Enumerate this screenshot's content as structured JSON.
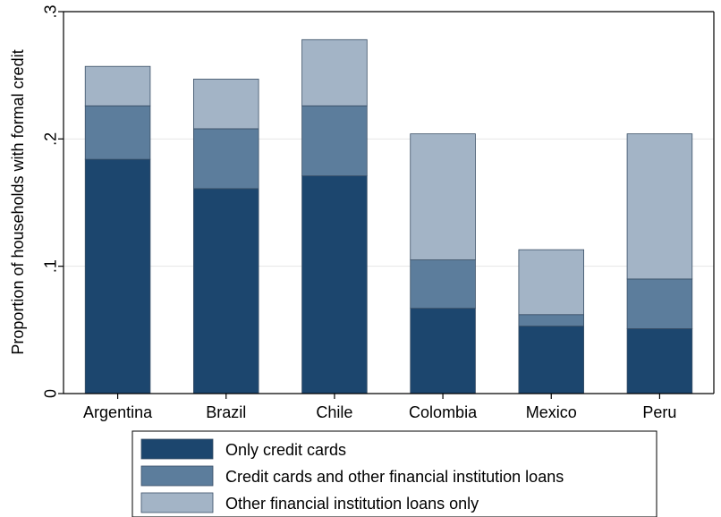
{
  "chart_data": {
    "type": "bar",
    "stacked": true,
    "categories": [
      "Argentina",
      "Brazil",
      "Chile",
      "Colombia",
      "Mexico",
      "Peru"
    ],
    "series": [
      {
        "name": "Only credit cards",
        "values": [
          0.184,
          0.161,
          0.171,
          0.067,
          0.053,
          0.051
        ],
        "color": "#1c466e"
      },
      {
        "name": "Credit cards and other financial institution loans",
        "values": [
          0.042,
          0.047,
          0.055,
          0.038,
          0.009,
          0.039
        ],
        "color": "#5c7d9c"
      },
      {
        "name": "Other financial institution loans only",
        "values": [
          0.031,
          0.039,
          0.052,
          0.099,
          0.051,
          0.114
        ],
        "color": "#a3b4c6"
      }
    ],
    "xlabel": "",
    "ylabel": "Proportion of households with formal credit",
    "ylim": [
      0,
      0.3
    ],
    "yticks": [
      0,
      0.1,
      0.2,
      0.3
    ],
    "ytick_labels": [
      "0",
      ".1",
      ".2",
      ".3"
    ],
    "grid": true,
    "legend_position": "bottom"
  }
}
